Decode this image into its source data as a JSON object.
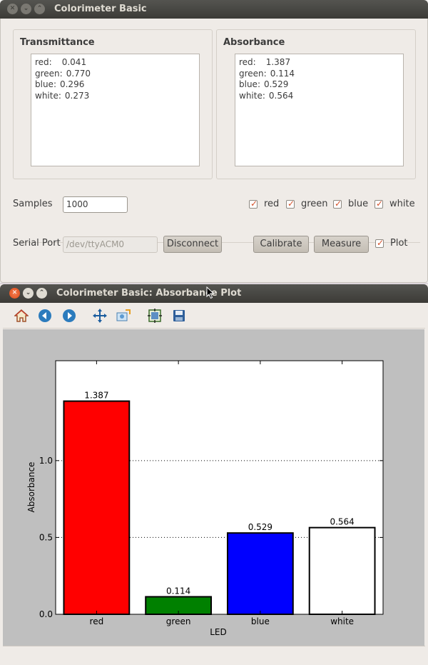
{
  "main_window": {
    "title": "Colorimeter Basic",
    "transmittance": {
      "title": "Transmittance",
      "rows": [
        {
          "label": "red:",
          "value": "0.041"
        },
        {
          "label": "green:",
          "value": "0.770"
        },
        {
          "label": "blue:",
          "value": "0.296"
        },
        {
          "label": "white:",
          "value": "0.273"
        }
      ]
    },
    "absorbance": {
      "title": "Absorbance",
      "rows": [
        {
          "label": "red:",
          "value": "1.387"
        },
        {
          "label": "green:",
          "value": "0.114"
        },
        {
          "label": "blue:",
          "value": "0.529"
        },
        {
          "label": "white:",
          "value": "0.564"
        }
      ]
    },
    "samples": {
      "label": "Samples",
      "value": "1000"
    },
    "led_checkboxes": [
      {
        "label": "red",
        "checked": true
      },
      {
        "label": "green",
        "checked": true
      },
      {
        "label": "blue",
        "checked": true
      },
      {
        "label": "white",
        "checked": true
      }
    ],
    "serial_port": {
      "label": "Serial Port",
      "value": "/dev/ttyACM0"
    },
    "buttons": {
      "disconnect": "Disconnect",
      "calibrate": "Calibrate",
      "measure": "Measure"
    },
    "plot_checkbox": {
      "label": "Plot",
      "checked": true
    }
  },
  "plot_window": {
    "title": "Colorimeter Basic: Absorbance Plot",
    "toolbar": [
      "home-icon",
      "back-icon",
      "forward-icon",
      "pan-icon",
      "zoom-icon",
      "subplots-icon",
      "save-icon"
    ]
  },
  "chart_data": {
    "type": "bar",
    "categories": [
      "red",
      "green",
      "blue",
      "white"
    ],
    "values": [
      1.387,
      0.114,
      0.529,
      0.564
    ],
    "value_labels": [
      "1.387",
      "0.114",
      "0.529",
      "0.564"
    ],
    "colors": [
      "#ff0000",
      "#008000",
      "#0000ff",
      "#ffffff"
    ],
    "xlabel": "LED",
    "ylabel": "Absorbance",
    "ylim": [
      0,
      1.65
    ],
    "yticks": [
      0.0,
      0.5,
      1.0
    ],
    "ytick_labels": [
      "0.0",
      "0.5",
      "1.0"
    ],
    "grid": "y-dotted"
  }
}
